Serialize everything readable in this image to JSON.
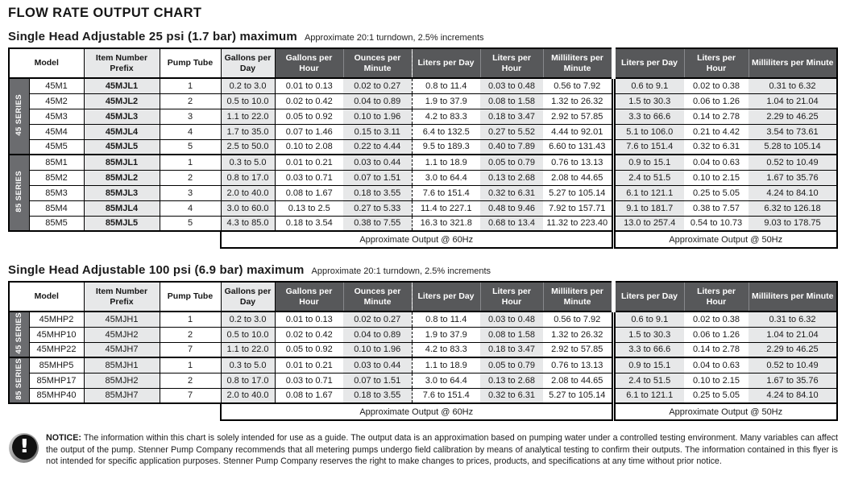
{
  "page_title": "FLOW RATE OUTPUT CHART",
  "colors": {
    "header_bg": "#57585a",
    "series_bg": "#6b6c6f",
    "row_shade": "#e7e8e9"
  },
  "tables": [
    {
      "title": "Single Head Adjustable 25 psi (1.7 bar) maximum",
      "note": "Approximate 20:1 turndown, 2.5% increments",
      "columns": [
        "Model",
        "Item Number Prefix",
        "Pump Tube",
        "Gallons per Day",
        "Gallons per Hour",
        "Ounces per Minute",
        "Liters per Day",
        "Liters per Hour",
        "Milliliters per Minute",
        "Liters per Day",
        "Liters per Hour",
        "Milliliters per Minute"
      ],
      "footers": {
        "hz60": "Approximate Output @ 60Hz",
        "hz50": "Approximate Output @ 50Hz"
      },
      "groups": [
        {
          "series": "45 SERIES",
          "rows": [
            [
              "45M1",
              "45MJL1",
              "1",
              "0.2 to 3.0",
              "0.01 to 0.13",
              "0.02 to 0.27",
              "0.8 to 11.4",
              "0.03 to 0.48",
              "0.56 to 7.92",
              "0.6 to 9.1",
              "0.02 to 0.38",
              "0.31 to 6.32"
            ],
            [
              "45M2",
              "45MJL2",
              "2",
              "0.5 to 10.0",
              "0.02 to 0.42",
              "0.04 to 0.89",
              "1.9 to 37.9",
              "0.08 to 1.58",
              "1.32 to 26.32",
              "1.5 to 30.3",
              "0.06 to 1.26",
              "1.04 to 21.04"
            ],
            [
              "45M3",
              "45MJL3",
              "3",
              "1.1 to 22.0",
              "0.05 to 0.92",
              "0.10 to 1.96",
              "4.2 to 83.3",
              "0.18 to 3.47",
              "2.92 to 57.85",
              "3.3 to 66.6",
              "0.14 to 2.78",
              "2.29 to 46.25"
            ],
            [
              "45M4",
              "45MJL4",
              "4",
              "1.7 to 35.0",
              "0.07 to 1.46",
              "0.15 to 3.11",
              "6.4 to 132.5",
              "0.27 to 5.52",
              "4.44 to 92.01",
              "5.1 to 106.0",
              "0.21 to 4.42",
              "3.54 to 73.61"
            ],
            [
              "45M5",
              "45MJL5",
              "5",
              "2.5 to 50.0",
              "0.10 to 2.08",
              "0.22 to 4.44",
              "9.5 to 189.3",
              "0.40 to 7.89",
              "6.60 to 131.43",
              "7.6 to 151.4",
              "0.32 to 6.31",
              "5.28 to 105.14"
            ]
          ]
        },
        {
          "series": "85 SERIES",
          "rows": [
            [
              "85M1",
              "85MJL1",
              "1",
              "0.3 to 5.0",
              "0.01 to 0.21",
              "0.03 to 0.44",
              "1.1 to 18.9",
              "0.05 to 0.79",
              "0.76 to 13.13",
              "0.9 to 15.1",
              "0.04 to 0.63",
              "0.52 to 10.49"
            ],
            [
              "85M2",
              "85MJL2",
              "2",
              "0.8 to 17.0",
              "0.03 to 0.71",
              "0.07 to 1.51",
              "3.0 to 64.4",
              "0.13 to 2.68",
              "2.08 to 44.65",
              "2.4 to 51.5",
              "0.10 to 2.15",
              "1.67 to 35.76"
            ],
            [
              "85M3",
              "85MJL3",
              "3",
              "2.0 to 40.0",
              "0.08 to 1.67",
              "0.18 to 3.55",
              "7.6 to 151.4",
              "0.32 to 6.31",
              "5.27 to 105.14",
              "6.1 to 121.1",
              "0.25 to 5.05",
              "4.24 to 84.10"
            ],
            [
              "85M4",
              "85MJL4",
              "4",
              "3.0 to 60.0",
              "0.13 to 2.5",
              "0.27 to 5.33",
              "11.4 to 227.1",
              "0.48 to 9.46",
              "7.92 to 157.71",
              "9.1 to 181.7",
              "0.38 to 7.57",
              "6.32 to 126.18"
            ],
            [
              "85M5",
              "85MJL5",
              "5",
              "4.3 to 85.0",
              "0.18 to 3.54",
              "0.38 to 7.55",
              "16.3 to 321.8",
              "0.68 to 13.4",
              "11.32 to 223.40",
              "13.0 to 257.4",
              "0.54 to 10.73",
              "9.03 to 178.75"
            ]
          ]
        }
      ]
    },
    {
      "title": "Single Head Adjustable 100 psi (6.9 bar) maximum",
      "note": "Approximate 20:1 turndown, 2.5% increments",
      "columns": [
        "Model",
        "Item Number Prefix",
        "Pump Tube",
        "Gallons per Day",
        "Gallons per Hour",
        "Ounces per Minute",
        "Liters per Day",
        "Liters per Hour",
        "Milliliters per Minute",
        "Liters per Day",
        "Liters per Hour",
        "Milliliters per Minute"
      ],
      "footers": {
        "hz60": "Approximate Output @ 60Hz",
        "hz50": "Approximate Output @ 50Hz"
      },
      "groups": [
        {
          "series": "45 SERIES",
          "rows": [
            [
              "45MHP2",
              "45MJH1",
              "1",
              "0.2 to 3.0",
              "0.01 to 0.13",
              "0.02 to 0.27",
              "0.8 to 11.4",
              "0.03 to 0.48",
              "0.56 to 7.92",
              "0.6 to 9.1",
              "0.02 to 0.38",
              "0.31 to 6.32"
            ],
            [
              "45MHP10",
              "45MJH2",
              "2",
              "0.5 to 10.0",
              "0.02 to 0.42",
              "0.04 to 0.89",
              "1.9 to 37.9",
              "0.08 to 1.58",
              "1.32 to 26.32",
              "1.5 to 30.3",
              "0.06 to 1.26",
              "1.04 to 21.04"
            ],
            [
              "45MHP22",
              "45MJH7",
              "7",
              "1.1 to 22.0",
              "0.05 to 0.92",
              "0.10 to 1.96",
              "4.2 to 83.3",
              "0.18 to 3.47",
              "2.92 to 57.85",
              "3.3 to 66.6",
              "0.14 to 2.78",
              "2.29 to 46.25"
            ]
          ]
        },
        {
          "series": "85 SERIES",
          "rows": [
            [
              "85MHP5",
              "85MJH1",
              "1",
              "0.3 to 5.0",
              "0.01 to 0.21",
              "0.03 to 0.44",
              "1.1 to 18.9",
              "0.05 to 0.79",
              "0.76 to 13.13",
              "0.9 to 15.1",
              "0.04 to 0.63",
              "0.52 to 10.49"
            ],
            [
              "85MHP17",
              "85MJH2",
              "2",
              "0.8 to 17.0",
              "0.03 to 0.71",
              "0.07 to 1.51",
              "3.0 to 64.4",
              "0.13 to 2.68",
              "2.08 to 44.65",
              "2.4 to 51.5",
              "0.10 to 2.15",
              "1.67 to 35.76"
            ],
            [
              "85MHP40",
              "85MJH7",
              "7",
              "2.0 to 40.0",
              "0.08 to 1.67",
              "0.18 to 3.55",
              "7.6 to 151.4",
              "0.32 to 6.31",
              "5.27 to 105.14",
              "6.1 to 121.1",
              "0.25 to 5.05",
              "4.24 to 84.10"
            ]
          ]
        }
      ]
    }
  ],
  "notice": {
    "label": "NOTICE:",
    "text": "The information within this chart is solely intended for use as a guide. The output data is an approximation based on pumping water under a controlled testing environment. Many variables can affect the output of the pump. Stenner Pump Company recommends that all metering pumps undergo field calibration by means of analytical testing to confirm their outputs. The information contained in this flyer is not intended for specific application purposes. Stenner Pump Company reserves the right to make changes to prices, products, and specifications at any time without prior notice."
  }
}
